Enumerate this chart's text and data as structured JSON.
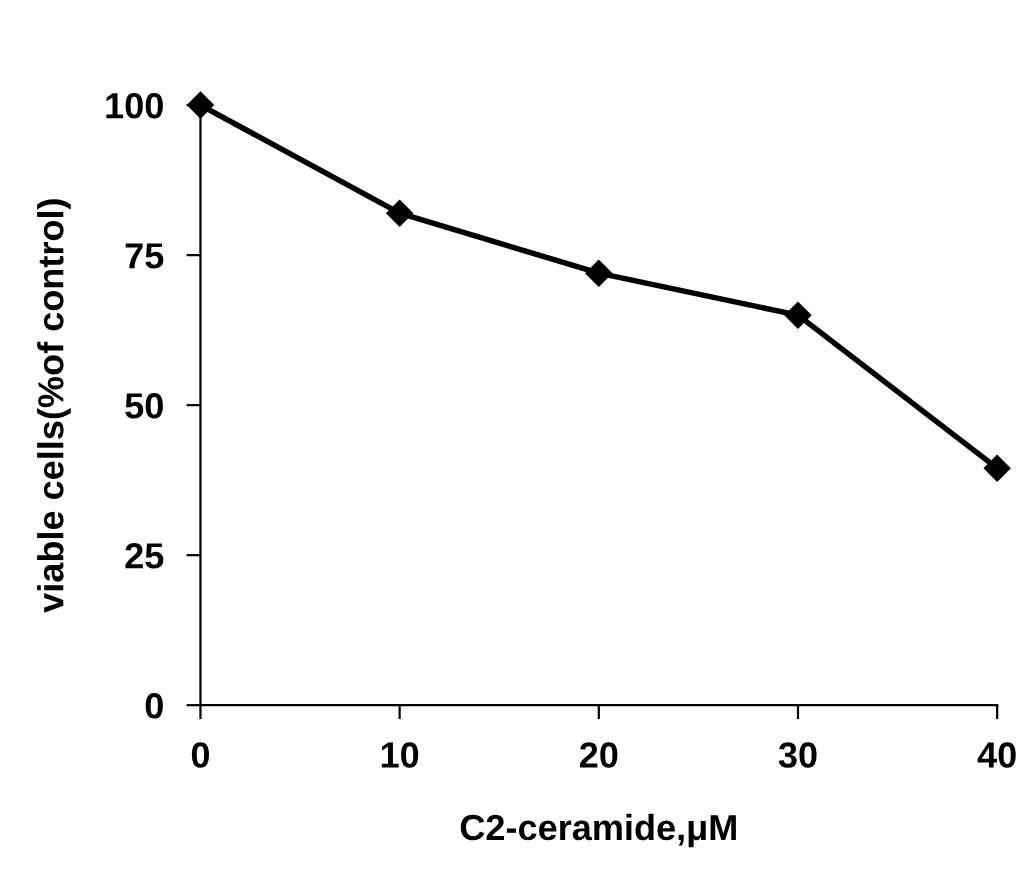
{
  "chart_data": {
    "type": "line",
    "xlabel": "C2-ceramide,μM",
    "ylabel": "viable cells(%of control)",
    "x": [
      0,
      10,
      20,
      30,
      40
    ],
    "series": [
      {
        "color": "#000000",
        "values": [
          100,
          82,
          72,
          65,
          39.5
        ]
      }
    ],
    "xlim": [
      0,
      40
    ],
    "xticks": [
      0,
      10,
      20,
      30,
      40
    ],
    "ylim": [
      0,
      100
    ],
    "yticks": [
      0,
      25,
      50,
      75,
      100
    ],
    "marker": "diamond",
    "line_style": "solid",
    "grid": false,
    "legend": false
  }
}
